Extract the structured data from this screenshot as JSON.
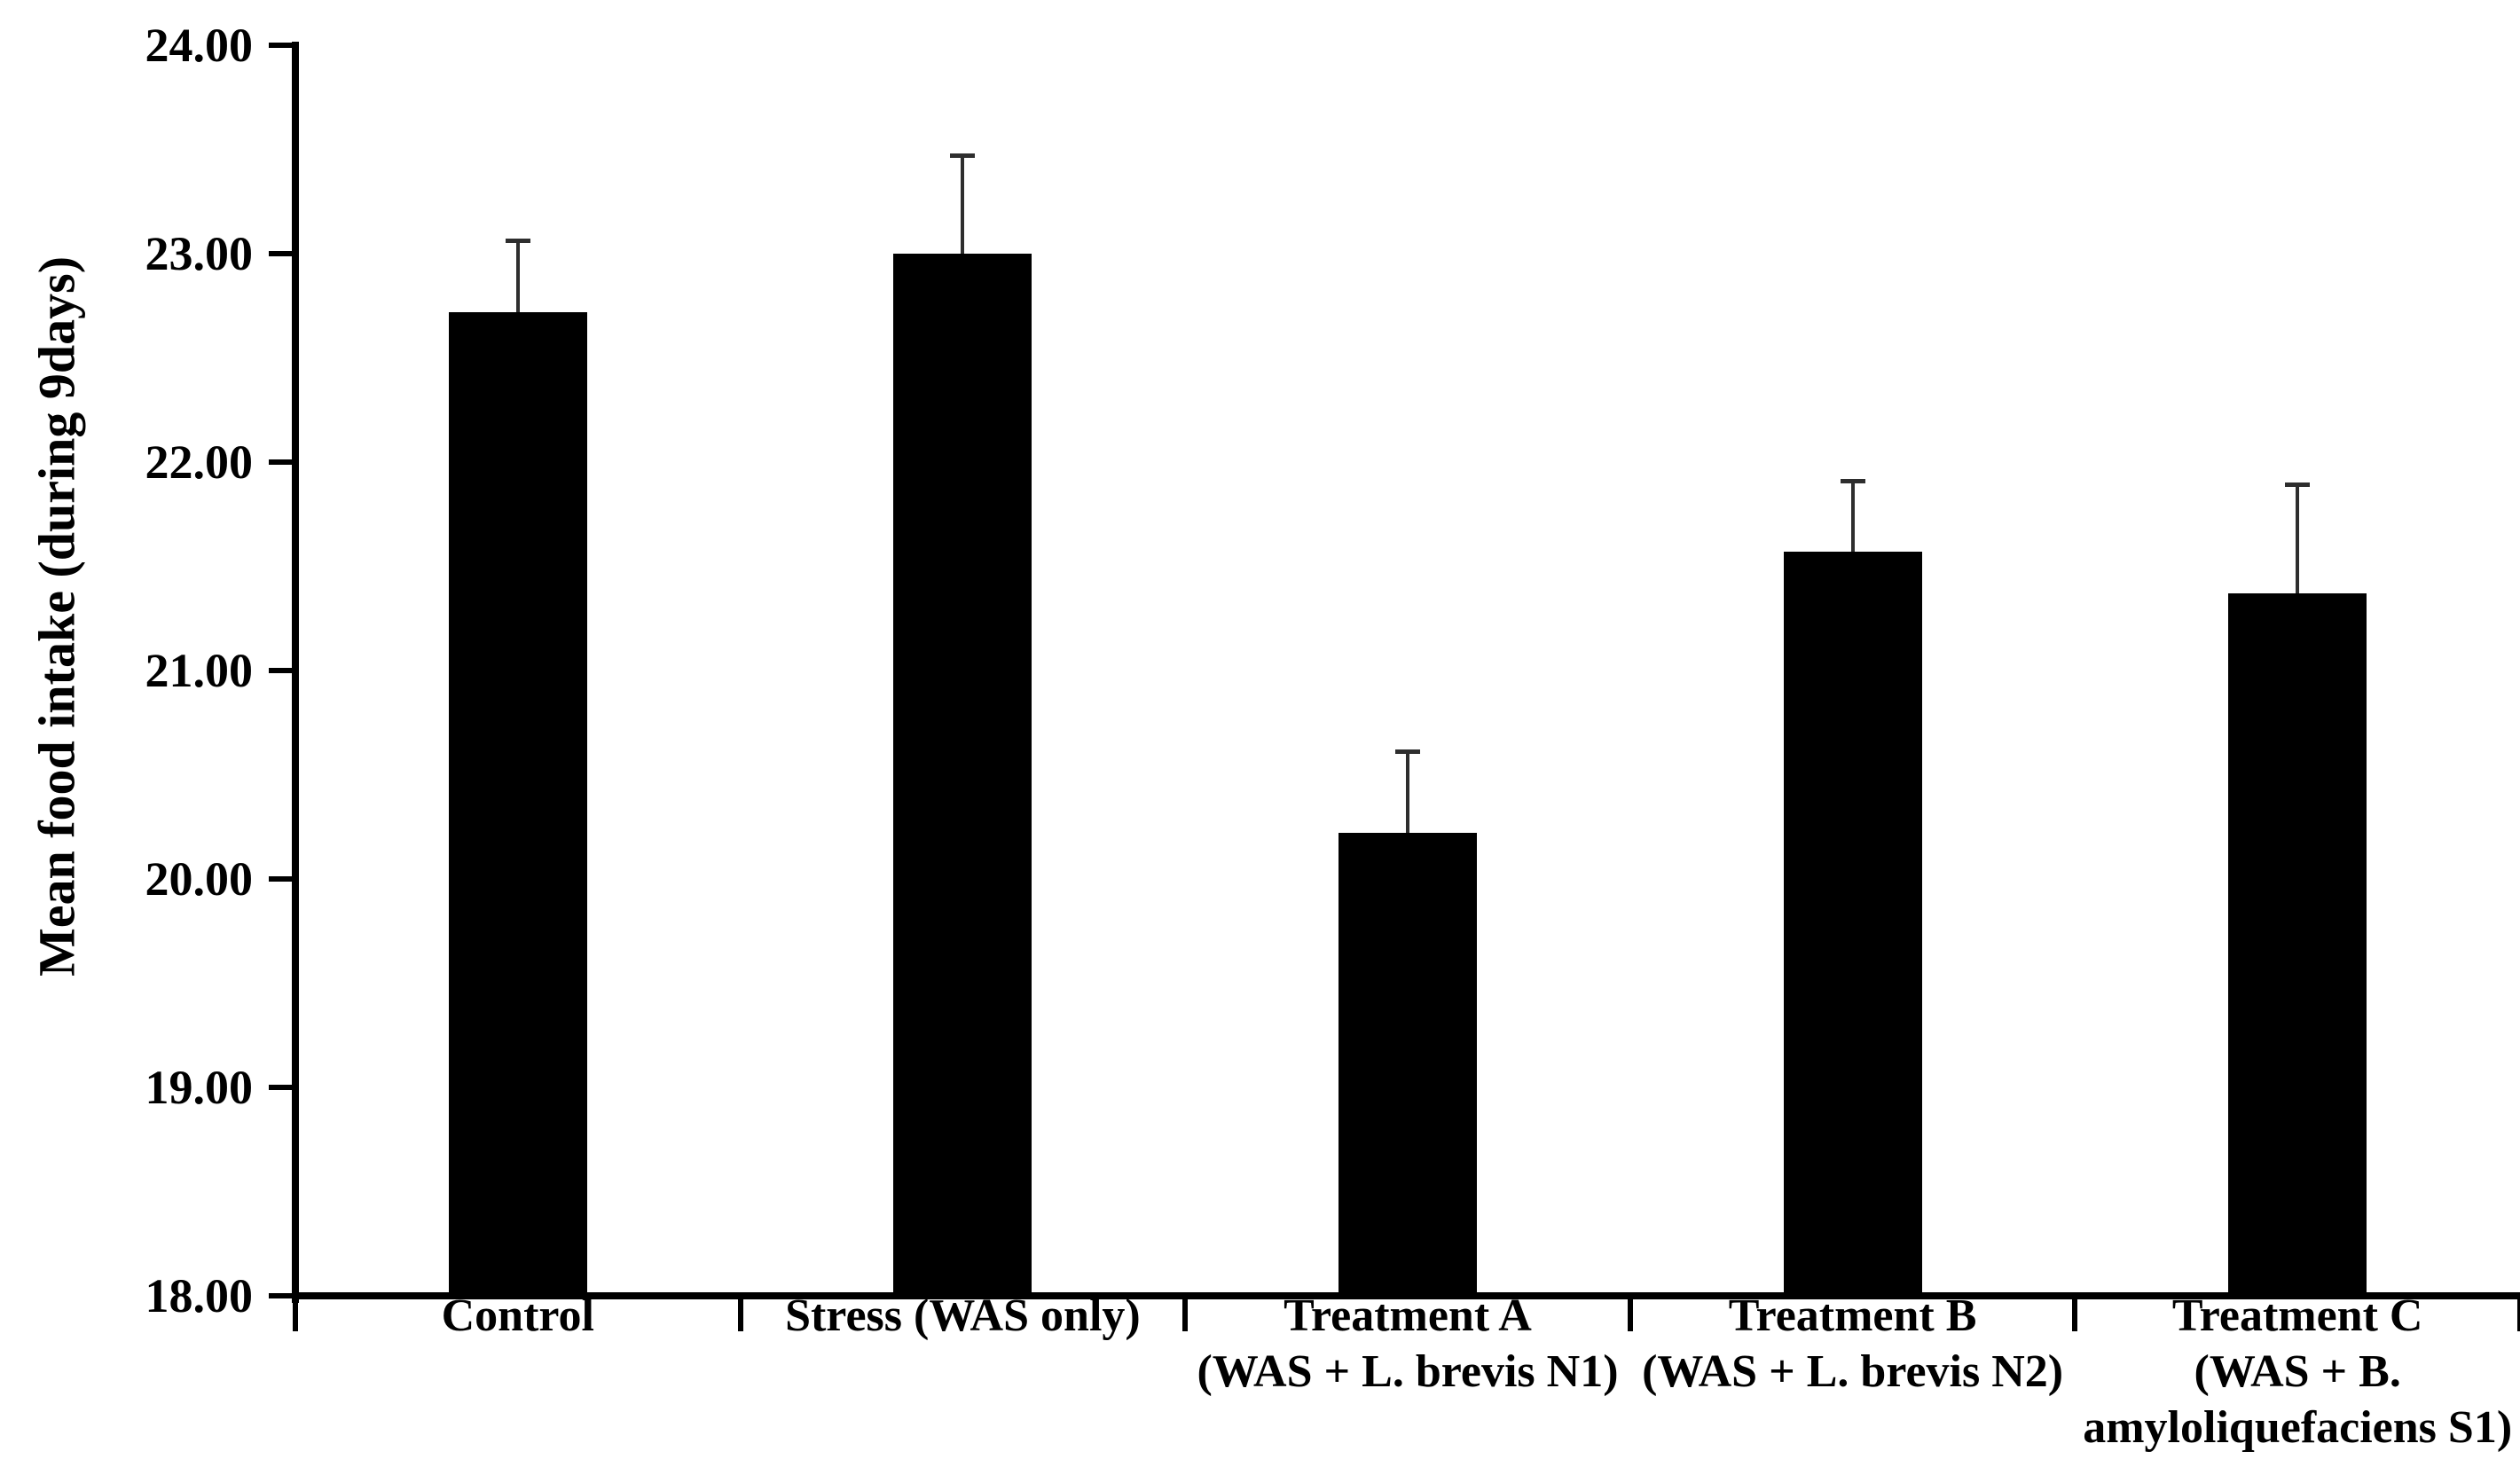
{
  "chart_data": {
    "type": "bar",
    "ylabel": "Mean food intake (during 9days)",
    "xlabel": "",
    "ylim": [
      18.0,
      24.0
    ],
    "ytick_step": 1.0,
    "yticks": [
      "24.00",
      "23.00",
      "22.00",
      "21.00",
      "20.00",
      "19.00",
      "18.00"
    ],
    "grid": false,
    "legend": "none",
    "bar_color": "#000000",
    "error_bar_color": "#2e2e2e",
    "categories": [
      "Control",
      "Stress (WAS only)",
      "Treatment A (WAS + L. brevis N1)",
      "Treatment B (WAS + L. brevis N2)",
      "Treatment C (WAS + B. amyloliquefaciens S1)"
    ],
    "category_label_lines": [
      [
        "Control"
      ],
      [
        "Stress (WAS only)"
      ],
      [
        "Treatment A",
        "(WAS + L. brevis N1)"
      ],
      [
        "Treatment B",
        "(WAS + L. brevis N2)"
      ],
      [
        "Treatment C",
        "(WAS + B.",
        "amyloliquefaciens S1)"
      ]
    ],
    "values": [
      22.72,
      23.0,
      20.22,
      21.57,
      21.37
    ],
    "errors_plus": [
      0.34,
      0.47,
      0.39,
      0.34,
      0.52
    ]
  }
}
